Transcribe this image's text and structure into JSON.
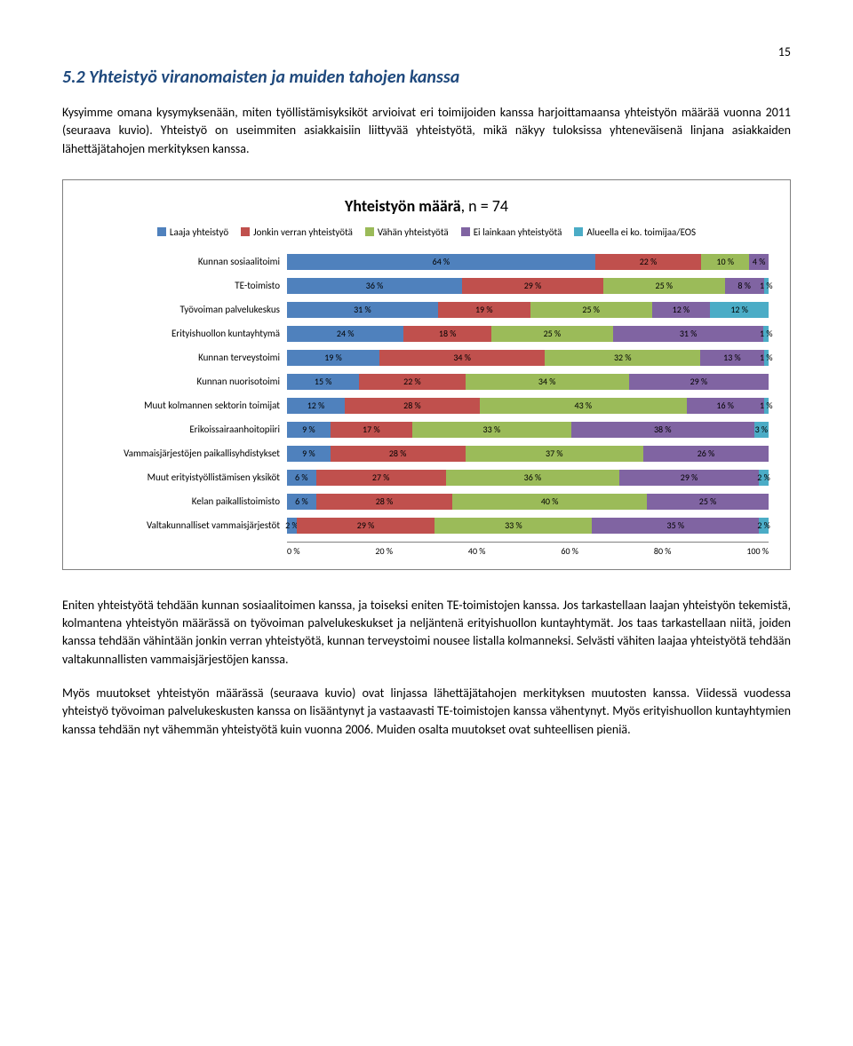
{
  "page_number": "15",
  "heading": "5.2 Yhteistyö viranomaisten ja muiden tahojen kanssa",
  "intro_text": "Kysyimme omana kysymyksenään, miten työllistämisyksiköt arvioivat eri toimijoiden kanssa harjoittamaansa yhteistyön määrää vuonna 2011 (seuraava kuvio). Yhteistyö on useimmiten asiakkaisiin liittyvää yhteistyötä, mikä näkyy tuloksissa yhteneväisenä linjana asiakkaiden lähettäjätahojen merkityksen kanssa.",
  "chart": {
    "title_bold": "Yhteistyön määrä",
    "title_suffix": ", n = 74",
    "legend": [
      {
        "label": "Laaja yhteistyö",
        "color": "#4f81bd"
      },
      {
        "label": "Jonkin verran yhteistyötä",
        "color": "#c0504d"
      },
      {
        "label": "Vähän yhteistyötä",
        "color": "#9bbb59"
      },
      {
        "label": "Ei lainkaan yhteistyötä",
        "color": "#8064a2"
      },
      {
        "label": "Alueella ei ko. toimijaa/EOS",
        "color": "#4bacc6"
      }
    ],
    "rows": [
      {
        "label": "Kunnan sosiaalitoimi",
        "values": [
          64,
          22,
          10,
          4,
          0
        ]
      },
      {
        "label": "TE-toimisto",
        "values": [
          36,
          29,
          25,
          8,
          1
        ]
      },
      {
        "label": "Työvoiman palvelukeskus",
        "values": [
          31,
          19,
          25,
          12,
          12
        ]
      },
      {
        "label": "Erityishuollon kuntayhtymä",
        "values": [
          24,
          18,
          25,
          31,
          1
        ]
      },
      {
        "label": "Kunnan terveystoimi",
        "values": [
          19,
          34,
          32,
          13,
          1
        ]
      },
      {
        "label": "Kunnan nuorisotoimi",
        "values": [
          15,
          22,
          34,
          29,
          0
        ]
      },
      {
        "label": "Muut kolmannen sektorin toimijat",
        "values": [
          12,
          28,
          43,
          16,
          1
        ]
      },
      {
        "label": "Erikoissairaanhoitopiiri",
        "values": [
          9,
          17,
          33,
          38,
          3
        ]
      },
      {
        "label": "Vammaisjärjestöjen paikallisyhdistykset",
        "values": [
          9,
          28,
          37,
          26,
          0
        ]
      },
      {
        "label": "Muut erityistyöllistämisen yksiköt",
        "values": [
          6,
          27,
          36,
          29,
          2
        ]
      },
      {
        "label": "Kelan paikallistoimisto",
        "values": [
          6,
          28,
          40,
          25,
          0
        ]
      },
      {
        "label": "Valtakunnalliset vammaisjärjestöt",
        "values": [
          2,
          29,
          33,
          35,
          2
        ]
      }
    ],
    "axis_ticks": [
      "0 %",
      "20 %",
      "40 %",
      "60 %",
      "80 %",
      "100 %"
    ],
    "colors": [
      "#4f81bd",
      "#c0504d",
      "#9bbb59",
      "#8064a2",
      "#4bacc6"
    ]
  },
  "para2": "Eniten yhteistyötä tehdään kunnan sosiaalitoimen kanssa, ja toiseksi eniten TE-toimistojen kanssa. Jos tarkastellaan laajan yhteistyön tekemistä, kolmantena yhteistyön määrässä on työvoiman palvelukeskukset ja neljäntenä erityishuollon kuntayhtymät. Jos taas tarkastellaan niitä, joiden kanssa tehdään vähintään jonkin verran yhteistyötä, kunnan terveystoimi nousee listalla kolmanneksi. Selvästi vähiten laajaa yhteistyötä tehdään valtakunnallisten vammaisjärjestöjen kanssa.",
  "para3": "Myös muutokset yhteistyön määrässä (seuraava kuvio) ovat linjassa lähettäjätahojen merkityksen muutosten kanssa. Viidessä vuodessa yhteistyö työvoiman palvelukeskusten kanssa on lisääntynyt ja vastaavasti TE-toimistojen kanssa vähentynyt. Myös erityishuollon kuntayhtymien kanssa tehdään nyt vähemmän yhteistyötä kuin vuonna 2006. Muiden osalta muutokset ovat suhteellisen pieniä."
}
